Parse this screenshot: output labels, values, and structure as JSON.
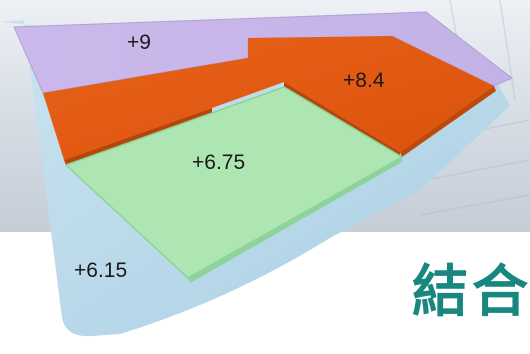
{
  "levels": {
    "top": "+9",
    "upper": "+8.4",
    "middle": "+6.75",
    "ground": "+6.15"
  },
  "caption": "結合",
  "colors": {
    "top": "#c8b6ea",
    "upper": "#e45a10",
    "middle": "#aee6b4",
    "ground": "#bcdcec",
    "caption": "#17877f",
    "backdrop": "#dde3ea"
  }
}
